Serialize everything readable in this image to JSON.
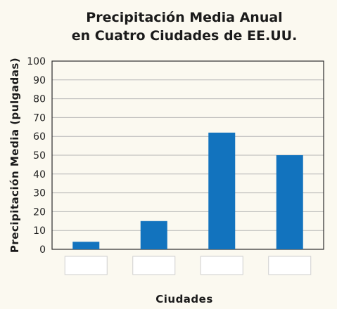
{
  "chart_data": {
    "type": "bar",
    "title": [
      "Precipitación Media Anual",
      "en Cuatro Ciudades de EE.UU."
    ],
    "xlabel": "Ciudades",
    "ylabel": "Precipitación Media (pulgadas)",
    "categories": [
      "",
      "",
      "",
      ""
    ],
    "values": [
      4,
      15,
      62,
      50
    ],
    "ylim": [
      0,
      100
    ],
    "yticks": [
      0,
      10,
      20,
      30,
      40,
      50,
      60,
      70,
      80,
      90,
      100
    ],
    "grid": true,
    "bar_color": "#1273be",
    "category_boxes": true
  }
}
